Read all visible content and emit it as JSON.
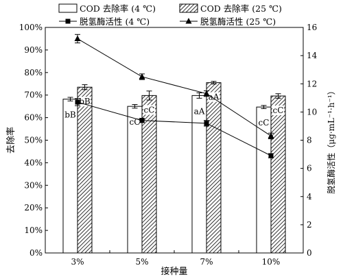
{
  "chart_data": {
    "type": "bar",
    "categories": [
      "3%",
      "5%",
      "7%",
      "10%"
    ],
    "xlabel": "接种量",
    "ylabel_left": "去除率",
    "ylabel_right": "脱氢酶活性（μg·mL⁻¹·h⁻¹）",
    "left_axis": {
      "min": 0,
      "max": 100,
      "step": 10,
      "tick_format": "percent"
    },
    "right_axis": {
      "min": 0,
      "max": 16,
      "step": 2
    },
    "bar_series": [
      {
        "name": "COD 去除率 (4 ℃)",
        "fill": "white",
        "values": [
          68.2,
          65.0,
          69.8,
          64.7
        ],
        "errors": [
          0.8,
          0.8,
          1.2,
          0.7
        ],
        "labels": [
          "bB",
          "cC",
          "aA",
          "cC"
        ]
      },
      {
        "name": "COD 去除率 (25 ℃)",
        "fill": "hatch",
        "values": [
          73.5,
          69.8,
          75.5,
          69.6
        ],
        "errors": [
          1.1,
          2.0,
          0.6,
          1.0
        ],
        "labels": [
          "bB",
          "cC",
          "aA",
          "cC"
        ]
      }
    ],
    "line_series": [
      {
        "name": "脱氢酶活性 (4 ℃)",
        "marker": "square",
        "values": [
          10.7,
          9.4,
          9.2,
          6.9
        ],
        "errors": [
          0.25,
          0.15,
          0.2,
          0.15
        ]
      },
      {
        "name": "脱氢酶活性 (25 ℃)",
        "marker": "triangle",
        "values": [
          15.2,
          12.5,
          11.3,
          8.3
        ],
        "errors": [
          0.3,
          0.2,
          0.2,
          0.2
        ]
      }
    ],
    "legend_position": "top",
    "grid": false
  }
}
